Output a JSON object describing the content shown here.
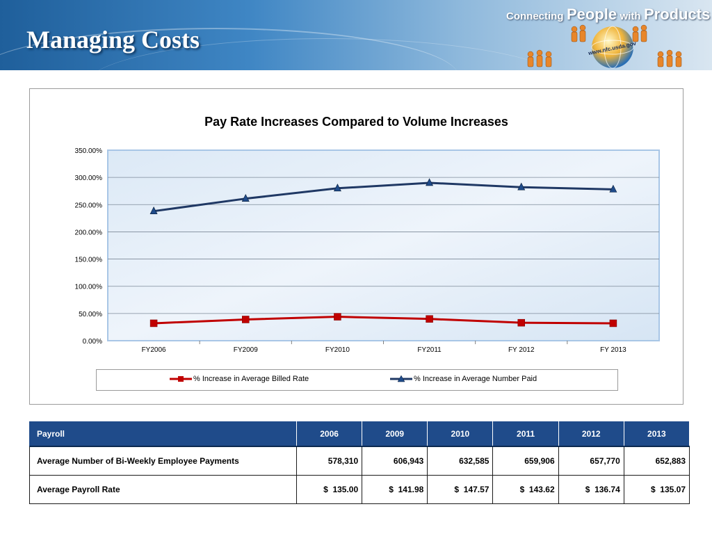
{
  "header": {
    "title": "Managing Costs",
    "logo": {
      "text_connecting": "Connecting",
      "text_people": "People",
      "text_with": "with",
      "text_products": "Products",
      "url": "www.nfc.usda.gov"
    }
  },
  "colors": {
    "header_start": "#1f5f9b",
    "header_end": "#d9e6f1",
    "series_billed_rate": "#c00000",
    "series_number_paid": "#1f3864",
    "table_header_bg": "#1f4b8a"
  },
  "chart_data": {
    "type": "line",
    "title": "Pay Rate Increases Compared to Volume Increases",
    "categories": [
      "FY2006",
      "FY2009",
      "FY2010",
      "FY2011",
      "FY 2012",
      "FY 2013"
    ],
    "series": [
      {
        "name": "% Increase in Average Billed Rate",
        "values": [
          32,
          39,
          44,
          40,
          33,
          32
        ],
        "color": "#c00000",
        "marker": "square"
      },
      {
        "name": "% Increase in Average Number Paid",
        "values": [
          238,
          261,
          280,
          290,
          282,
          278
        ],
        "color": "#1f3864",
        "marker": "triangle"
      }
    ],
    "ylim": [
      0,
      350
    ],
    "yticks": [
      "0.00%",
      "50.00%",
      "100.00%",
      "150.00%",
      "200.00%",
      "250.00%",
      "300.00%",
      "350.00%"
    ],
    "ytick_values": [
      0,
      50,
      100,
      150,
      200,
      250,
      300,
      350
    ],
    "grid": true,
    "legend_position": "bottom"
  },
  "table": {
    "headers": [
      "Payroll",
      "2006",
      "2009",
      "2010",
      "2011",
      "2012",
      "2013"
    ],
    "rows": [
      [
        "Average Number of Bi-Weekly Employee Payments",
        "578,310",
        "606,943",
        "632,585",
        "659,906",
        "657,770",
        "652,883"
      ],
      [
        "Average Payroll Rate",
        "$  135.00",
        "$  141.98",
        "$  147.57",
        "$  143.62",
        "$  136.74",
        "$  135.07"
      ]
    ]
  }
}
